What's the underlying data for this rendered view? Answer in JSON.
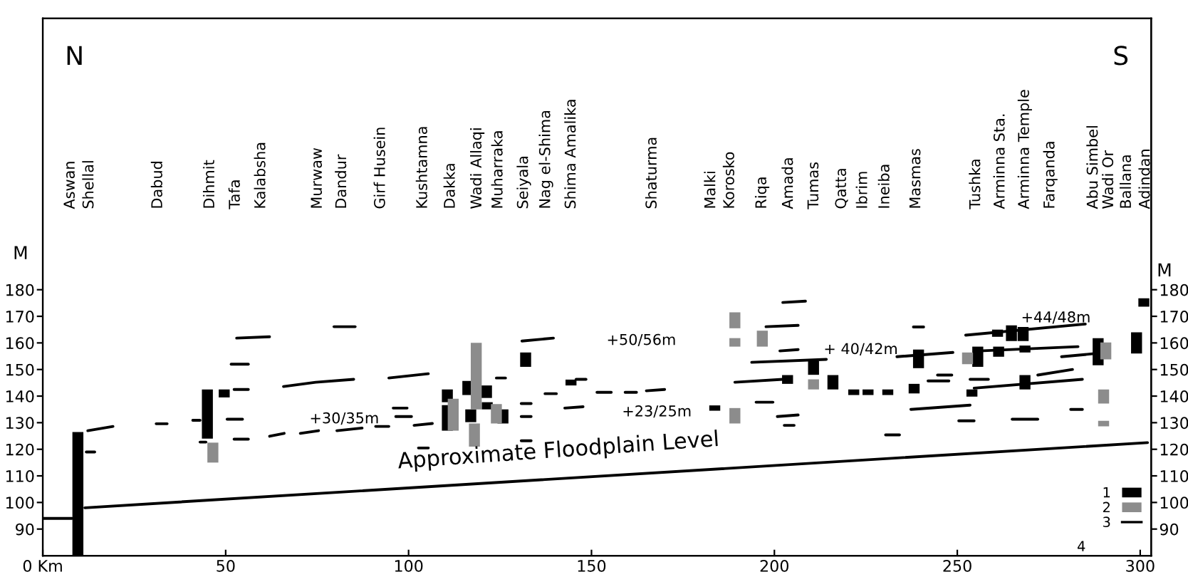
{
  "chart_data": {
    "type": "bar",
    "ylabel": "M",
    "y2label": "M",
    "xlim": [
      0,
      303
    ],
    "xticks": [
      {
        "value": 0,
        "label": "0 Km"
      },
      50,
      100,
      150,
      200,
      250,
      300
    ],
    "ylim": [
      80,
      282
    ],
    "yticks": [
      90,
      100,
      110,
      120,
      130,
      140,
      150,
      160,
      170,
      180
    ],
    "y2lim": [
      80,
      282
    ],
    "y2ticks": [
      90,
      100,
      110,
      120,
      130,
      140,
      150,
      160,
      170,
      180
    ],
    "grid": false,
    "legend": "bottom right",
    "series": [
      {
        "name": "1",
        "color": "#000000",
        "x": [
          9.6,
          45,
          49.6,
          110.6,
          116.2,
          117,
          121.3,
          121.5,
          125.8,
          132,
          144.4,
          183.7,
          203.6,
          210.7,
          216,
          221.7,
          225.6,
          231,
          238.2,
          239.4,
          254,
          255.6,
          261,
          261.3,
          264.8,
          268,
          268.5,
          288.5,
          299,
          301
        ],
        "base": [
          80,
          124,
          139.5,
          127,
          140.4,
          130.2,
          139.3,
          135,
          129.7,
          151,
          144,
          134.5,
          144.6,
          148,
          142.5,
          140.4,
          140.4,
          140.4,
          141,
          150.5,
          139.8,
          151,
          162.3,
          154.8,
          160.7,
          160.7,
          156.4,
          151.6,
          156,
          173.6
        ],
        "values": [
          46.5,
          18.5,
          3,
          9.6,
          5.3,
          4.8,
          4.7,
          2.7,
          5.3,
          5.4,
          2.2,
          2,
          3.3,
          5.2,
          5.4,
          2.1,
          2.1,
          2.1,
          3.6,
          7,
          2.7,
          7.6,
          2.7,
          3.8,
          5.9,
          5.3,
          2.6,
          10.2,
          8,
          3.2
        ]
      },
      {
        "color": "#000000",
        "x": [
          110.6,
          268.5
        ],
        "base": [
          137.7,
          142.5
        ],
        "values": [
          4.8,
          5.4
        ]
      },
      {
        "name": "2",
        "color": "#8c8c8c",
        "x": [
          46.5,
          112.2,
          118,
          118.5,
          124,
          189.2,
          196.7,
          210.7,
          252.8,
          290,
          290.6
        ],
        "base": [
          115,
          127,
          121,
          135,
          129.7,
          165.5,
          158.6,
          142.5,
          152,
          137.2,
          153.8
        ],
        "values": [
          7.5,
          12,
          8.7,
          25,
          7.3,
          6,
          6,
          3.8,
          4.4,
          5.3,
          6.4
        ]
      },
      {
        "color": "#8c8c8c",
        "x": [
          189.2,
          290
        ],
        "base": [
          158.6,
          128.6
        ],
        "values": [
          3.2,
          2.1
        ]
      },
      {
        "color": "#8c8c8c",
        "x": [
          189.2
        ],
        "base": [
          129.7
        ],
        "values": [
          5.8
        ]
      },
      {
        "type": "line",
        "name": "3",
        "color": "#000000",
        "x": [
          12.3,
          19.2
        ],
        "values": [
          127,
          128.6
        ]
      },
      {
        "type": "line",
        "color": "#000000",
        "x": [
          31,
          34
        ],
        "values": [
          129.6,
          129.6
        ]
      },
      {
        "type": "line",
        "color": "#000000",
        "x": [
          41,
          43
        ],
        "values": [
          130.9,
          130.9
        ]
      },
      {
        "type": "line",
        "color": "#000000",
        "x": [
          11.9,
          14.2
        ],
        "values": [
          119,
          119
        ]
      },
      {
        "type": "line",
        "color": "#000000",
        "x": [
          43,
          44.6
        ],
        "values": [
          122.7,
          122.7
        ]
      },
      {
        "type": "line",
        "color": "#000000",
        "x": [
          50.4,
          54.6
        ],
        "values": [
          131.3,
          131.3
        ]
      },
      {
        "type": "line",
        "color": "#000000",
        "x": [
          52.3,
          56.2
        ],
        "values": [
          142.5,
          142.5
        ]
      },
      {
        "type": "line",
        "color": "#000000",
        "x": [
          51.5,
          56.2
        ],
        "values": [
          152,
          152
        ]
      },
      {
        "type": "line",
        "color": "#000000",
        "x": [
          53,
          62
        ],
        "values": [
          161.8,
          162.3
        ]
      },
      {
        "type": "line",
        "color": "#000000",
        "x": [
          52.3,
          56.2
        ],
        "values": [
          123.8,
          123.8
        ]
      },
      {
        "type": "line",
        "color": "#000000",
        "x": [
          62,
          66
        ],
        "values": [
          124.9,
          126
        ]
      },
      {
        "type": "line",
        "color": "#000000",
        "x": [
          70.4,
          75.4
        ],
        "values": [
          126,
          127
        ]
      },
      {
        "type": "line",
        "color": "#000000",
        "x": [
          80.4,
          87.3
        ],
        "values": [
          127,
          128
        ]
      },
      {
        "type": "line",
        "color": "#000000",
        "x": [
          91,
          94.6
        ],
        "values": [
          128.6,
          128.6
        ]
      },
      {
        "type": "line",
        "color": "#000000",
        "x": [
          65.8,
          74.6,
          85
        ],
        "values": [
          143.6,
          145.2,
          146.3
        ]
      },
      {
        "type": "line",
        "color": "#000000",
        "x": [
          79.6,
          85.4
        ],
        "values": [
          166.1,
          166.1
        ]
      },
      {
        "type": "line",
        "color": "#000000",
        "x": [
          94.6,
          105.4
        ],
        "values": [
          146.8,
          148.4
        ]
      },
      {
        "type": "line",
        "color": "#000000",
        "x": [
          95.8,
          99.6
        ],
        "values": [
          135.5,
          135.5
        ]
      },
      {
        "type": "line",
        "color": "#000000",
        "x": [
          96.5,
          100.8
        ],
        "values": [
          132.3,
          132.3
        ]
      },
      {
        "type": "line",
        "color": "#000000",
        "x": [
          102.7,
          105.4
        ],
        "values": [
          120.5,
          120.5
        ]
      },
      {
        "type": "line",
        "color": "#000000",
        "x": [
          101.5,
          106.5
        ],
        "values": [
          129,
          129.7
        ]
      },
      {
        "type": "line",
        "color": "#000000",
        "x": [
          131,
          139.6
        ],
        "values": [
          160.7,
          161.8
        ]
      },
      {
        "type": "line",
        "color": "#000000",
        "x": [
          124,
          126.5
        ],
        "values": [
          146.8,
          146.8
        ]
      },
      {
        "type": "line",
        "color": "#000000",
        "x": [
          130.8,
          133.5
        ],
        "values": [
          137.2,
          137.2
        ]
      },
      {
        "type": "line",
        "color": "#000000",
        "x": [
          130.8,
          133.5
        ],
        "values": [
          132.3,
          132.3
        ]
      },
      {
        "type": "line",
        "color": "#000000",
        "x": [
          130.8,
          133.5
        ],
        "values": [
          123.2,
          123.2
        ]
      },
      {
        "type": "line",
        "color": "#000000",
        "x": [
          137.3,
          140.4
        ],
        "values": [
          140.9,
          140.9
        ]
      },
      {
        "type": "line",
        "color": "#000000",
        "x": [
          142.7,
          147.7
        ],
        "values": [
          135.5,
          136
        ]
      },
      {
        "type": "line",
        "color": "#000000",
        "x": [
          145.8,
          148.5
        ],
        "values": [
          146.3,
          146.3
        ]
      },
      {
        "type": "line",
        "color": "#000000",
        "x": [
          151.5,
          155.4
        ],
        "values": [
          141.4,
          141.4
        ]
      },
      {
        "type": "line",
        "color": "#000000",
        "x": [
          159.2,
          162.3
        ],
        "values": [
          141.4,
          141.4
        ]
      },
      {
        "type": "line",
        "color": "#000000",
        "x": [
          165,
          170
        ],
        "values": [
          142,
          142.5
        ]
      },
      {
        "type": "line",
        "color": "#000000",
        "x": [
          189.2,
          202.3
        ],
        "values": [
          145.2,
          146.3
        ]
      },
      {
        "type": "line",
        "color": "#000000",
        "x": [
          193.8,
          214.2
        ],
        "values": [
          152.7,
          153.8
        ]
      },
      {
        "type": "line",
        "color": "#000000",
        "x": [
          197.7,
          206.5
        ],
        "values": [
          166.1,
          166.6
        ]
      },
      {
        "type": "line",
        "color": "#000000",
        "x": [
          195,
          199.6
        ],
        "values": [
          137.7,
          137.7
        ]
      },
      {
        "type": "line",
        "color": "#000000",
        "x": [
          200.8,
          206.5
        ],
        "values": [
          132.3,
          132.9
        ]
      },
      {
        "type": "line",
        "color": "#000000",
        "x": [
          202.3,
          208.5
        ],
        "values": [
          175.2,
          175.7
        ]
      },
      {
        "type": "line",
        "color": "#000000",
        "x": [
          201.5,
          206.5
        ],
        "values": [
          157,
          157.5
        ]
      },
      {
        "type": "line",
        "color": "#000000",
        "x": [
          202.7,
          205.4
        ],
        "values": [
          129,
          129
        ]
      },
      {
        "type": "line",
        "color": "#000000",
        "x": [
          230.4,
          234.2
        ],
        "values": [
          125.4,
          125.4
        ]
      },
      {
        "type": "line",
        "color": "#000000",
        "x": [
          233.5,
          248.8
        ],
        "values": [
          154.8,
          156.4
        ]
      },
      {
        "type": "line",
        "color": "#000000",
        "x": [
          237.3,
          253.5
        ],
        "values": [
          135,
          136.6
        ]
      },
      {
        "type": "line",
        "color": "#000000",
        "x": [
          238,
          240.8
        ],
        "values": [
          166,
          166
        ]
      },
      {
        "type": "line",
        "color": "#000000",
        "x": [
          242,
          247.7
        ],
        "values": [
          145.7,
          145.7
        ]
      },
      {
        "type": "line",
        "color": "#000000",
        "x": [
          244.6,
          248.5
        ],
        "values": [
          147.9,
          147.9
        ]
      },
      {
        "type": "line",
        "color": "#000000",
        "x": [
          250.4,
          254.6
        ],
        "values": [
          130.7,
          130.7
        ]
      },
      {
        "type": "line",
        "color": "#000000",
        "x": [
          252.3,
          285
        ],
        "values": [
          162.9,
          167.1
        ]
      },
      {
        "type": "line",
        "color": "#000000",
        "x": [
          256,
          283
        ],
        "values": [
          157,
          158.6
        ]
      },
      {
        "type": "line",
        "color": "#000000",
        "x": [
          253.5,
          258.5
        ],
        "values": [
          146.3,
          146.3
        ]
      },
      {
        "type": "line",
        "color": "#000000",
        "x": [
          254.6,
          284.2
        ],
        "values": [
          143,
          146.3
        ]
      },
      {
        "type": "line",
        "color": "#000000",
        "x": [
          265,
          272
        ],
        "values": [
          131.3,
          131.3
        ]
      },
      {
        "type": "line",
        "color": "#000000",
        "x": [
          272,
          281.5
        ],
        "values": [
          147.9,
          150
        ]
      },
      {
        "type": "line",
        "color": "#000000",
        "x": [
          278.5,
          287
        ],
        "values": [
          154.8,
          155.9
        ]
      },
      {
        "type": "line",
        "color": "#000000",
        "x": [
          281,
          284.2
        ],
        "values": [
          135,
          135
        ]
      },
      {
        "type": "line",
        "color": "#000000",
        "x": [
          0,
          8
        ],
        "values": [
          94,
          94
        ]
      },
      {
        "type": "line",
        "color": "#000000",
        "x": [
          11.5,
          302
        ],
        "values": [
          98,
          122.5
        ]
      }
    ],
    "annotations": [
      "N",
      "S",
      "4",
      "+30/35m",
      "+50/56m",
      "+23/25m",
      "+ 40/42m",
      "+44/48m",
      {
        "text": "Approximate Floodplain Level",
        "x": 141,
        "y": 108.9
      },
      "Aswan",
      "Shellal",
      "Dabud",
      "Dihmit",
      "Tafa",
      "Kalabsha",
      "Murwaw",
      "Dandur",
      "Girf Husein",
      "Kushtamna",
      "Dakka",
      "Wadi Allaqi",
      "Muharraka",
      "Seiyala",
      "Nag el-Shima",
      "Shima Amalika",
      "Shaturma",
      "Malki",
      "Korosko",
      "Riqa",
      "Amada",
      "Tumas",
      "Qatta",
      "Ibrim",
      "Ineiba",
      "Masmas",
      "Tushka",
      "Arminna Sta.",
      "Arminna Temple",
      "Farqanda",
      "Abu Simbel",
      "Wadi Or",
      "Ballana",
      "Adindan"
    ]
  }
}
